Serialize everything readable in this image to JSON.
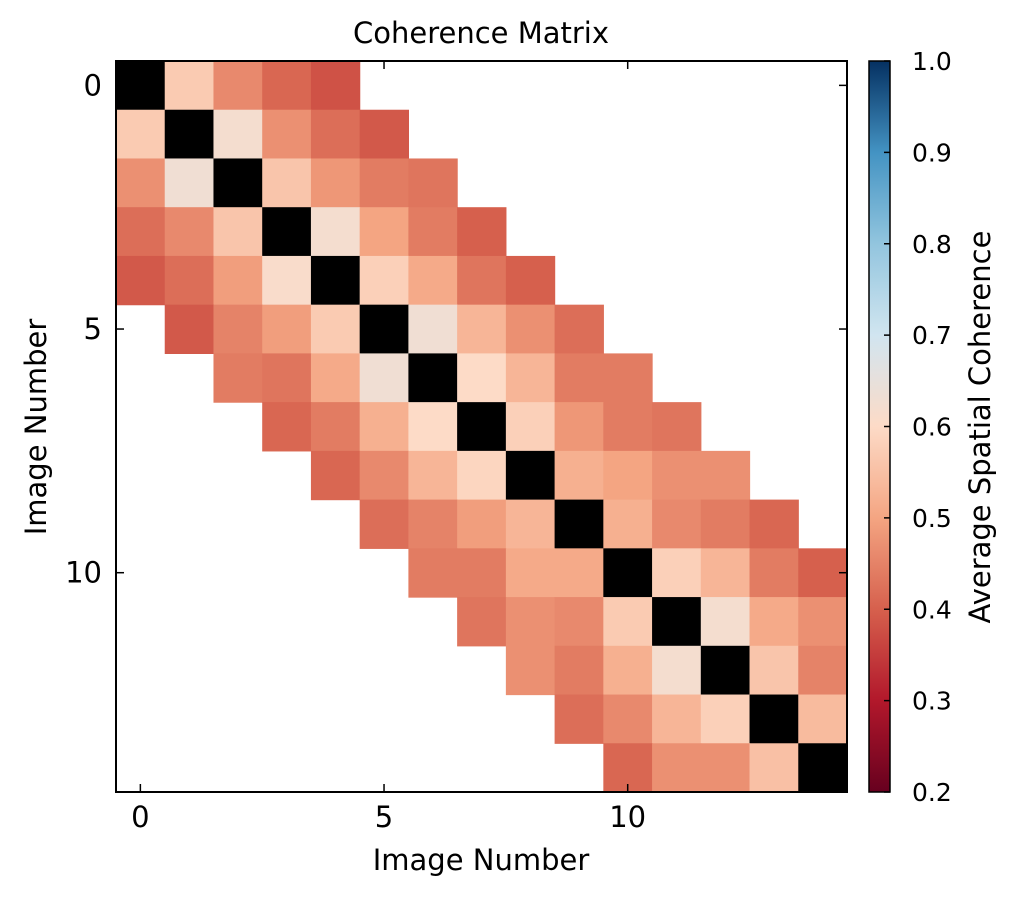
{
  "chart_data": {
    "type": "heatmap",
    "title": "Coherence Matrix",
    "xlabel": "Image Number",
    "ylabel": "Image Number",
    "xticks": [
      0,
      5,
      10
    ],
    "yticks": [
      0,
      5,
      10
    ],
    "size": 15,
    "colorbar": {
      "label": "Average Spatial Coherence",
      "ticks": [
        "0.2",
        "0.3",
        "0.4",
        "0.5",
        "0.6",
        "0.7",
        "0.8",
        "0.9",
        "1.0"
      ],
      "vmin": 0.2,
      "vmax": 1.0,
      "colormap": "RdBu"
    },
    "diagonal_color": "#000000",
    "values": [
      [
        null,
        0.57,
        0.46,
        0.41,
        0.38,
        null,
        null,
        null,
        null,
        null,
        null,
        null,
        null,
        null,
        null
      ],
      [
        0.57,
        null,
        0.62,
        0.47,
        0.42,
        0.39,
        null,
        null,
        null,
        null,
        null,
        null,
        null,
        null,
        null
      ],
      [
        0.47,
        0.63,
        null,
        0.56,
        0.48,
        0.44,
        0.43,
        null,
        null,
        null,
        null,
        null,
        null,
        null,
        null
      ],
      [
        0.42,
        0.46,
        0.56,
        null,
        0.62,
        0.5,
        0.44,
        0.4,
        null,
        null,
        null,
        null,
        null,
        null,
        null
      ],
      [
        0.39,
        0.42,
        0.49,
        0.61,
        null,
        0.58,
        0.51,
        0.43,
        0.4,
        null,
        null,
        null,
        null,
        null,
        null
      ],
      [
        null,
        0.39,
        0.45,
        0.49,
        0.57,
        null,
        0.63,
        0.53,
        0.47,
        0.42,
        null,
        null,
        null,
        null,
        null
      ],
      [
        null,
        null,
        0.44,
        0.43,
        0.51,
        0.63,
        null,
        0.6,
        0.53,
        0.44,
        0.44,
        null,
        null,
        null,
        null
      ],
      [
        null,
        null,
        null,
        0.41,
        0.44,
        0.52,
        0.6,
        null,
        0.58,
        0.48,
        0.44,
        0.43,
        null,
        null,
        null
      ],
      [
        null,
        null,
        null,
        null,
        0.41,
        0.46,
        0.53,
        0.59,
        null,
        0.52,
        0.5,
        0.47,
        0.47,
        null,
        null
      ],
      [
        null,
        null,
        null,
        null,
        null,
        0.42,
        0.45,
        0.49,
        0.53,
        null,
        0.52,
        0.46,
        0.44,
        0.41,
        null
      ],
      [
        null,
        null,
        null,
        null,
        null,
        null,
        0.44,
        0.44,
        0.51,
        0.51,
        null,
        0.58,
        0.53,
        0.44,
        0.4
      ],
      [
        null,
        null,
        null,
        null,
        null,
        null,
        null,
        0.43,
        0.47,
        0.46,
        0.57,
        null,
        0.62,
        0.51,
        0.47
      ],
      [
        null,
        null,
        null,
        null,
        null,
        null,
        null,
        null,
        0.47,
        0.44,
        0.52,
        0.62,
        null,
        0.56,
        0.45
      ],
      [
        null,
        null,
        null,
        null,
        null,
        null,
        null,
        null,
        null,
        0.42,
        0.46,
        0.53,
        0.58,
        null,
        0.54
      ],
      [
        null,
        null,
        null,
        null,
        null,
        null,
        null,
        null,
        null,
        null,
        0.41,
        0.47,
        0.47,
        0.55,
        null
      ]
    ]
  }
}
